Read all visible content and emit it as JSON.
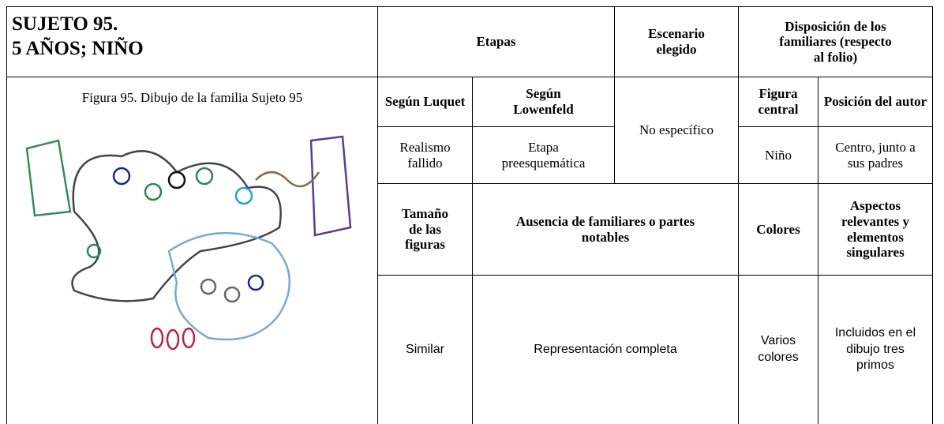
{
  "header": {
    "subject": "SUJETO 95.",
    "subtitle": "5 AÑOS; NIÑO",
    "etapas": "Etapas",
    "escenario": "Escenario elegido",
    "disposicion": "Disposición de los familiares (respecto al folio)"
  },
  "figure_caption": "Figura 95. Dibujo de la familia Sujeto 95",
  "subheaders": {
    "luquet": "Según Luquet",
    "lowenfeld": "Según Lowenfeld",
    "figura_central": "Figura central",
    "posicion_autor": "Posición del autor"
  },
  "values": {
    "luquet": "Realismo fallido",
    "lowenfeld": "Etapa preesquemática",
    "escenario": "No específico",
    "figura_central": "Niño",
    "posicion_autor": "Centro, junto a sus padres"
  },
  "subheaders2": {
    "tamano": "Tamaño de las figuras",
    "ausencia": "Ausencia de familiares o partes notables",
    "colores": "Colores",
    "aspectos": "Aspectos relevantes y elementos singulares"
  },
  "values2": {
    "tamano": "Similar",
    "ausencia": "Representación completa",
    "colores": "Varios colores",
    "aspectos": "Incluidos en el dibujo tres primos"
  }
}
